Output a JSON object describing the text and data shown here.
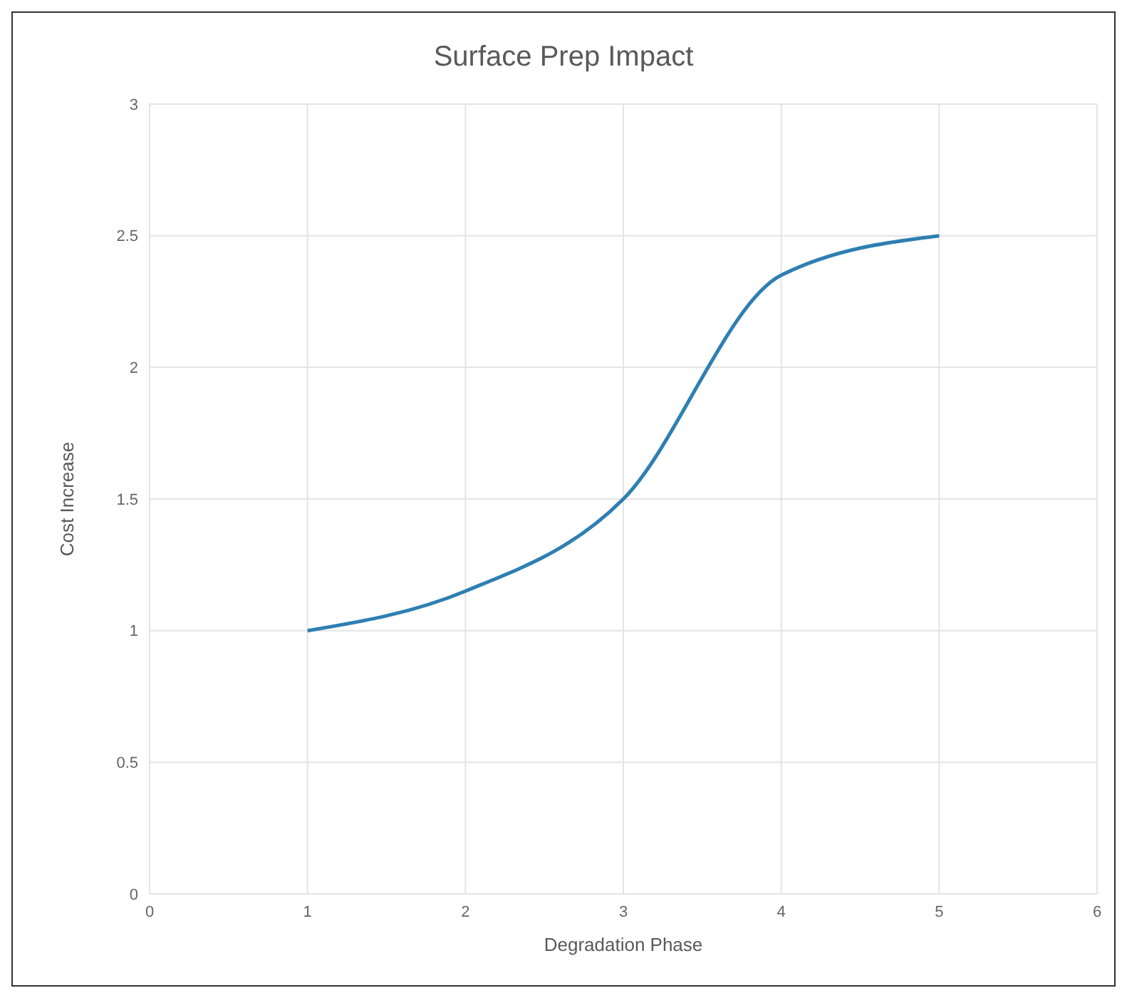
{
  "chart_data": {
    "type": "line",
    "title": "Surface Prep Impact",
    "xlabel": "Degradation Phase",
    "ylabel": "Cost Increase",
    "x": [
      1,
      2,
      3,
      4,
      5
    ],
    "series": [
      {
        "color": "#2e7fb2",
        "values": [
          1,
          1.15,
          1.5,
          2.35,
          2.5
        ]
      }
    ],
    "xlim": [
      0,
      6
    ],
    "xticks": [
      0,
      1,
      2,
      3,
      4,
      5,
      6
    ],
    "ylim": [
      0,
      3
    ],
    "yticks": [
      0,
      0.5,
      1,
      1.5,
      2,
      2.5,
      3
    ],
    "grid": true,
    "marker": "none",
    "line_style": "solid"
  }
}
